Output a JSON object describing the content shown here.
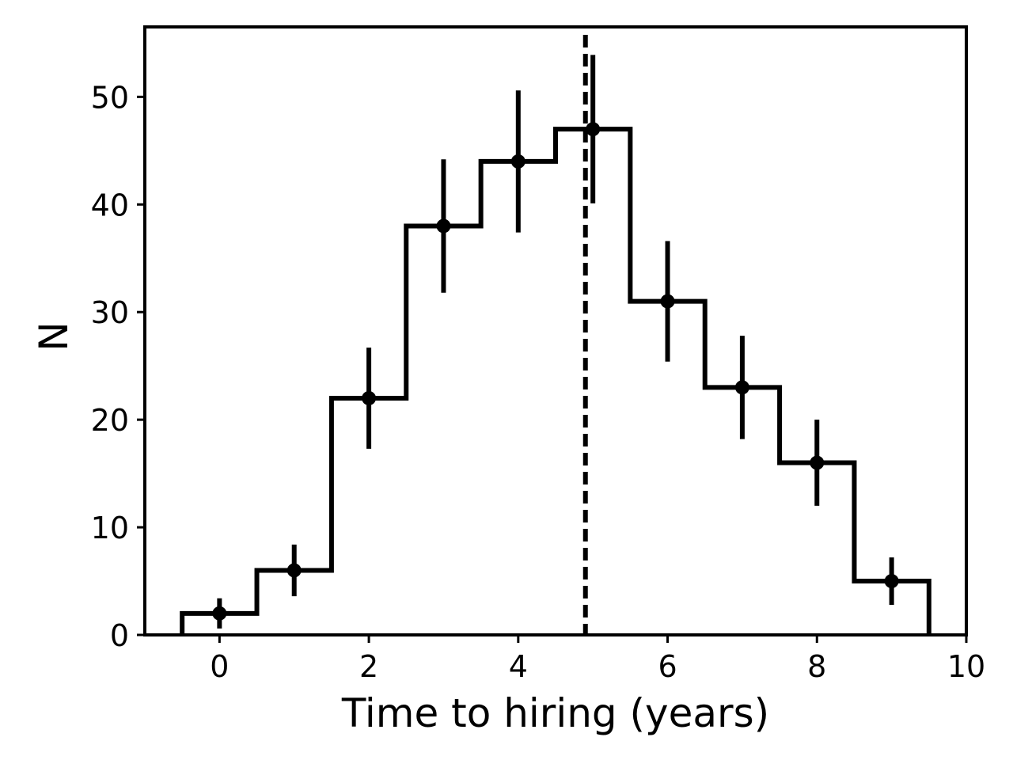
{
  "chart_data": {
    "type": "histogram",
    "title": "",
    "xlabel": "Time to hiring (years)",
    "ylabel": "N",
    "xlim": [
      -1,
      10
    ],
    "ylim": [
      0,
      56.5
    ],
    "grid": false,
    "legend": "none",
    "bin_width": 1,
    "x_ticks": [
      0,
      2,
      4,
      6,
      8,
      10
    ],
    "y_ticks": [
      0,
      10,
      20,
      30,
      40,
      50
    ],
    "series": [
      {
        "x": [
          0,
          1,
          2,
          3,
          4,
          5,
          6,
          7,
          8,
          9
        ],
        "values": [
          2,
          6,
          22,
          38,
          44,
          47,
          31,
          23,
          16,
          5
        ],
        "errors": [
          1.4,
          2.4,
          4.7,
          6.2,
          6.6,
          6.9,
          5.6,
          4.8,
          4.0,
          2.2
        ]
      }
    ],
    "reference_line_x": 4.9,
    "colors": {
      "line": "#000000",
      "background": "#ffffff"
    }
  }
}
